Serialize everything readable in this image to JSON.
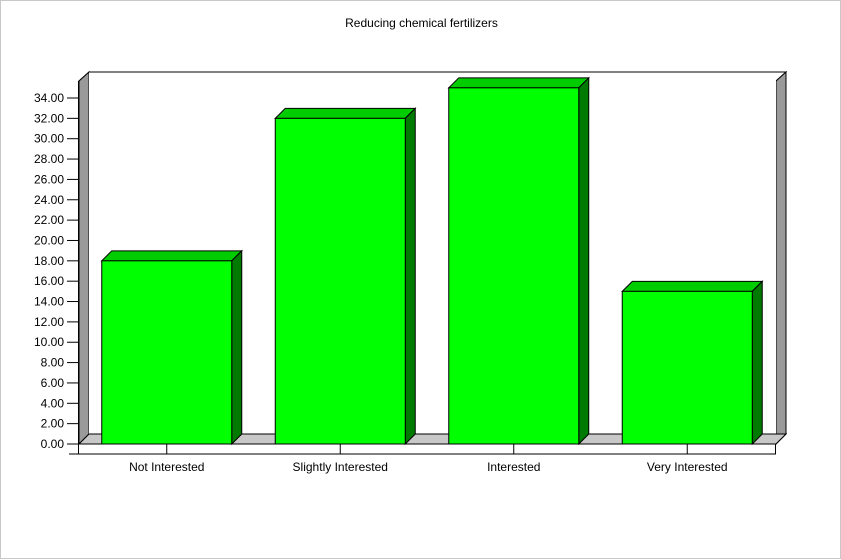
{
  "chart_data": {
    "type": "bar",
    "title": "Reducing chemical fertilizers",
    "xlabel": "",
    "ylabel": "",
    "categories": [
      "Not Interested",
      "Slightly Interested",
      "Interested",
      "Very Interested"
    ],
    "values": [
      18,
      32,
      35,
      15
    ],
    "ylim": [
      0,
      34
    ],
    "yticks": [
      "0.00",
      "2.00",
      "4.00",
      "6.00",
      "8.00",
      "10.00",
      "12.00",
      "14.00",
      "16.00",
      "18.00",
      "20.00",
      "22.00",
      "24.00",
      "26.00",
      "28.00",
      "30.00",
      "32.00",
      "34.00"
    ],
    "grid": false,
    "legend": "none",
    "style": "3d",
    "colors": {
      "bar_front": "#00ff00",
      "bar_top": "#00cc00",
      "bar_side": "#007a00",
      "wall": "#9a9a9a",
      "floor": "#c8c8c8"
    }
  }
}
